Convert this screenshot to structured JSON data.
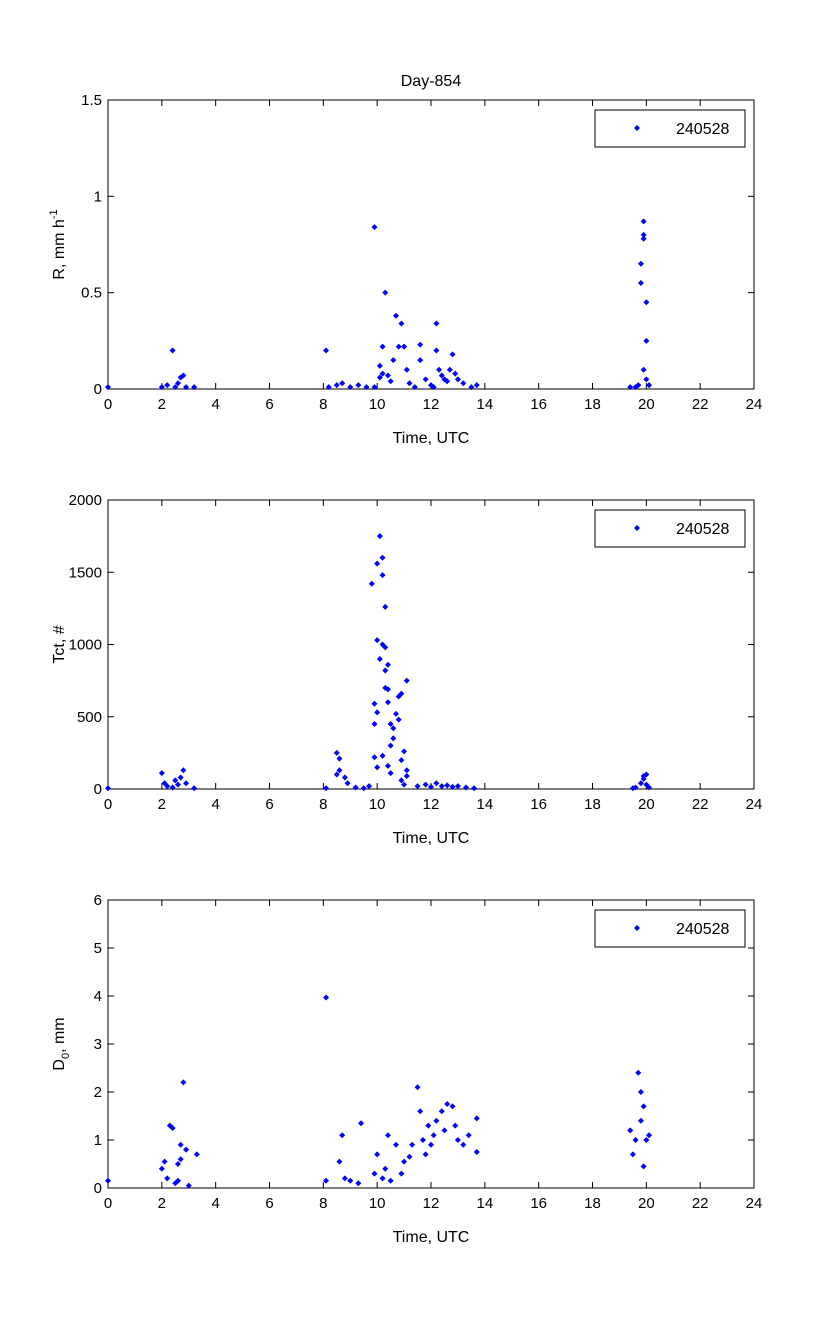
{
  "title": "Day-854",
  "colors": {
    "marker": "#0000ff",
    "axis": "#000000"
  },
  "chart_data": [
    {
      "type": "scatter",
      "title": "Day-854",
      "xlabel": "Time, UTC",
      "ylabel": {
        "main": "R, mm h",
        "sup": "-1",
        "sub": ""
      },
      "xlim": [
        0,
        24
      ],
      "ylim": [
        0,
        1.5
      ],
      "xticks": [
        0,
        2,
        4,
        6,
        8,
        10,
        12,
        14,
        16,
        18,
        20,
        22,
        24
      ],
      "yticks": [
        0,
        0.5,
        1,
        1.5
      ],
      "ytick_labels": [
        "0",
        "0.5",
        "1",
        "1.5"
      ],
      "legend": {
        "label": "240528",
        "placement": "top-right"
      },
      "series": [
        {
          "name": "240528",
          "points": [
            [
              0,
              0.01
            ],
            [
              2.0,
              0.01
            ],
            [
              2.2,
              0.02
            ],
            [
              2.4,
              0.2
            ],
            [
              2.5,
              0.01
            ],
            [
              2.6,
              0.03
            ],
            [
              2.7,
              0.06
            ],
            [
              2.8,
              0.07
            ],
            [
              2.9,
              0.01
            ],
            [
              3.2,
              0.01
            ],
            [
              8.1,
              0.2
            ],
            [
              8.2,
              0.01
            ],
            [
              8.5,
              0.02
            ],
            [
              8.7,
              0.03
            ],
            [
              9.0,
              0.01
            ],
            [
              9.3,
              0.02
            ],
            [
              9.6,
              0.01
            ],
            [
              9.9,
              0.84
            ],
            [
              9.9,
              0.01
            ],
            [
              10.1,
              0.12
            ],
            [
              10.2,
              0.22
            ],
            [
              10.3,
              0.5
            ],
            [
              10.1,
              0.06
            ],
            [
              10.2,
              0.08
            ],
            [
              10.4,
              0.07
            ],
            [
              10.5,
              0.04
            ],
            [
              10.6,
              0.15
            ],
            [
              10.7,
              0.38
            ],
            [
              10.9,
              0.34
            ],
            [
              10.8,
              0.22
            ],
            [
              11.0,
              0.22
            ],
            [
              11.1,
              0.1
            ],
            [
              11.2,
              0.03
            ],
            [
              11.4,
              0.01
            ],
            [
              11.6,
              0.23
            ],
            [
              11.6,
              0.15
            ],
            [
              11.8,
              0.05
            ],
            [
              12.0,
              0.02
            ],
            [
              12.1,
              0.01
            ],
            [
              12.2,
              0.34
            ],
            [
              12.2,
              0.2
            ],
            [
              12.3,
              0.1
            ],
            [
              12.4,
              0.07
            ],
            [
              12.5,
              0.05
            ],
            [
              12.6,
              0.04
            ],
            [
              12.7,
              0.1
            ],
            [
              12.8,
              0.18
            ],
            [
              12.9,
              0.08
            ],
            [
              13.0,
              0.05
            ],
            [
              13.2,
              0.03
            ],
            [
              13.5,
              0.01
            ],
            [
              13.7,
              0.02
            ],
            [
              19.4,
              0.01
            ],
            [
              19.6,
              0.01
            ],
            [
              19.7,
              0.02
            ],
            [
              19.8,
              0.65
            ],
            [
              19.8,
              0.55
            ],
            [
              19.9,
              0.78
            ],
            [
              19.9,
              0.87
            ],
            [
              19.9,
              0.8
            ],
            [
              20.0,
              0.45
            ],
            [
              20.0,
              0.25
            ],
            [
              19.9,
              0.1
            ],
            [
              20.0,
              0.05
            ],
            [
              20.1,
              0.02
            ]
          ]
        }
      ]
    },
    {
      "type": "scatter",
      "xlabel": "Time, UTC",
      "ylabel": {
        "main": "Tct, #",
        "sup": "",
        "sub": ""
      },
      "xlim": [
        0,
        24
      ],
      "ylim": [
        0,
        2000
      ],
      "xticks": [
        0,
        2,
        4,
        6,
        8,
        10,
        12,
        14,
        16,
        18,
        20,
        22,
        24
      ],
      "yticks": [
        0,
        500,
        1000,
        1500,
        2000
      ],
      "ytick_labels": [
        "0",
        "500",
        "1000",
        "1500",
        "2000"
      ],
      "legend": {
        "label": "240528",
        "placement": "top-right"
      },
      "series": [
        {
          "name": "240528",
          "points": [
            [
              0,
              5
            ],
            [
              2.0,
              110
            ],
            [
              2.1,
              40
            ],
            [
              2.2,
              20
            ],
            [
              2.4,
              10
            ],
            [
              2.5,
              60
            ],
            [
              2.6,
              30
            ],
            [
              2.7,
              80
            ],
            [
              2.8,
              130
            ],
            [
              2.9,
              40
            ],
            [
              3.2,
              5
            ],
            [
              8.1,
              5
            ],
            [
              8.5,
              250
            ],
            [
              8.6,
              210
            ],
            [
              8.5,
              100
            ],
            [
              8.6,
              130
            ],
            [
              8.8,
              80
            ],
            [
              8.9,
              40
            ],
            [
              9.2,
              10
            ],
            [
              9.5,
              5
            ],
            [
              9.7,
              20
            ],
            [
              9.8,
              1420
            ],
            [
              9.9,
              450
            ],
            [
              10.0,
              1560
            ],
            [
              10.1,
              1750
            ],
            [
              10.2,
              1600
            ],
            [
              10.2,
              1480
            ],
            [
              10.3,
              1260
            ],
            [
              10.0,
              1030
            ],
            [
              10.2,
              1000
            ],
            [
              10.3,
              980
            ],
            [
              10.1,
              900
            ],
            [
              10.4,
              860
            ],
            [
              10.3,
              820
            ],
            [
              9.9,
              590
            ],
            [
              10.3,
              700
            ],
            [
              10.4,
              690
            ],
            [
              10.0,
              530
            ],
            [
              10.4,
              600
            ],
            [
              10.5,
              450
            ],
            [
              10.6,
              420
            ],
            [
              10.7,
              520
            ],
            [
              10.8,
              640
            ],
            [
              10.9,
              660
            ],
            [
              11.1,
              750
            ],
            [
              10.8,
              480
            ],
            [
              10.6,
              350
            ],
            [
              10.5,
              300
            ],
            [
              10.9,
              200
            ],
            [
              11.0,
              260
            ],
            [
              10.2,
              230
            ],
            [
              10.0,
              150
            ],
            [
              9.9,
              220
            ],
            [
              10.4,
              160
            ],
            [
              11.1,
              130
            ],
            [
              11.1,
              90
            ],
            [
              10.9,
              60
            ],
            [
              10.5,
              110
            ],
            [
              11.0,
              30
            ],
            [
              11.5,
              20
            ],
            [
              11.8,
              30
            ],
            [
              12.0,
              15
            ],
            [
              12.2,
              40
            ],
            [
              12.4,
              20
            ],
            [
              12.6,
              25
            ],
            [
              12.8,
              15
            ],
            [
              13.0,
              20
            ],
            [
              13.3,
              10
            ],
            [
              13.6,
              5
            ],
            [
              19.5,
              5
            ],
            [
              19.6,
              10
            ],
            [
              19.8,
              40
            ],
            [
              19.9,
              90
            ],
            [
              20.0,
              100
            ],
            [
              19.9,
              70
            ],
            [
              20.0,
              30
            ],
            [
              20.1,
              10
            ]
          ]
        }
      ]
    },
    {
      "type": "scatter",
      "xlabel": "Time, UTC",
      "ylabel": {
        "main": "D",
        "sup": "",
        "sub": "0",
        "suffix": ", mm"
      },
      "xlim": [
        0,
        24
      ],
      "ylim": [
        0,
        6
      ],
      "xticks": [
        0,
        2,
        4,
        6,
        8,
        10,
        12,
        14,
        16,
        18,
        20,
        22,
        24
      ],
      "yticks": [
        0,
        1,
        2,
        3,
        4,
        5,
        6
      ],
      "ytick_labels": [
        "0",
        "1",
        "2",
        "3",
        "4",
        "5",
        "6"
      ],
      "legend": {
        "label": "240528",
        "placement": "top-right"
      },
      "series": [
        {
          "name": "240528",
          "points": [
            [
              0,
              0.15
            ],
            [
              2.0,
              0.4
            ],
            [
              2.1,
              0.55
            ],
            [
              2.2,
              0.2
            ],
            [
              2.3,
              1.3
            ],
            [
              2.4,
              1.25
            ],
            [
              2.5,
              0.1
            ],
            [
              2.6,
              0.5
            ],
            [
              2.7,
              0.9
            ],
            [
              2.8,
              2.2
            ],
            [
              2.7,
              0.6
            ],
            [
              2.9,
              0.8
            ],
            [
              2.6,
              0.15
            ],
            [
              3.0,
              0.05
            ],
            [
              3.3,
              0.7
            ],
            [
              8.1,
              3.97
            ],
            [
              8.1,
              0.15
            ],
            [
              8.6,
              0.55
            ],
            [
              8.7,
              1.1
            ],
            [
              8.8,
              0.2
            ],
            [
              9.0,
              0.15
            ],
            [
              9.3,
              0.1
            ],
            [
              9.4,
              1.35
            ],
            [
              9.9,
              0.3
            ],
            [
              10.0,
              0.7
            ],
            [
              10.2,
              0.2
            ],
            [
              10.4,
              1.1
            ],
            [
              10.3,
              0.4
            ],
            [
              10.5,
              0.15
            ],
            [
              10.7,
              0.9
            ],
            [
              10.9,
              0.3
            ],
            [
              11.0,
              0.55
            ],
            [
              11.2,
              0.65
            ],
            [
              11.3,
              0.9
            ],
            [
              11.5,
              2.1
            ],
            [
              11.6,
              1.6
            ],
            [
              11.7,
              1.0
            ],
            [
              11.8,
              0.7
            ],
            [
              11.9,
              1.3
            ],
            [
              12.0,
              0.9
            ],
            [
              12.1,
              1.1
            ],
            [
              12.2,
              1.4
            ],
            [
              12.4,
              1.6
            ],
            [
              12.5,
              1.2
            ],
            [
              12.6,
              1.75
            ],
            [
              12.8,
              1.7
            ],
            [
              12.9,
              1.3
            ],
            [
              13.0,
              1.0
            ],
            [
              13.2,
              0.9
            ],
            [
              13.4,
              1.1
            ],
            [
              13.7,
              1.45
            ],
            [
              13.7,
              0.75
            ],
            [
              19.4,
              1.2
            ],
            [
              19.5,
              0.7
            ],
            [
              19.6,
              1.0
            ],
            [
              19.7,
              2.4
            ],
            [
              19.8,
              2.0
            ],
            [
              19.9,
              1.7
            ],
            [
              19.8,
              1.4
            ],
            [
              20.0,
              1.0
            ],
            [
              19.9,
              0.45
            ],
            [
              20.1,
              1.1
            ]
          ]
        }
      ]
    }
  ]
}
